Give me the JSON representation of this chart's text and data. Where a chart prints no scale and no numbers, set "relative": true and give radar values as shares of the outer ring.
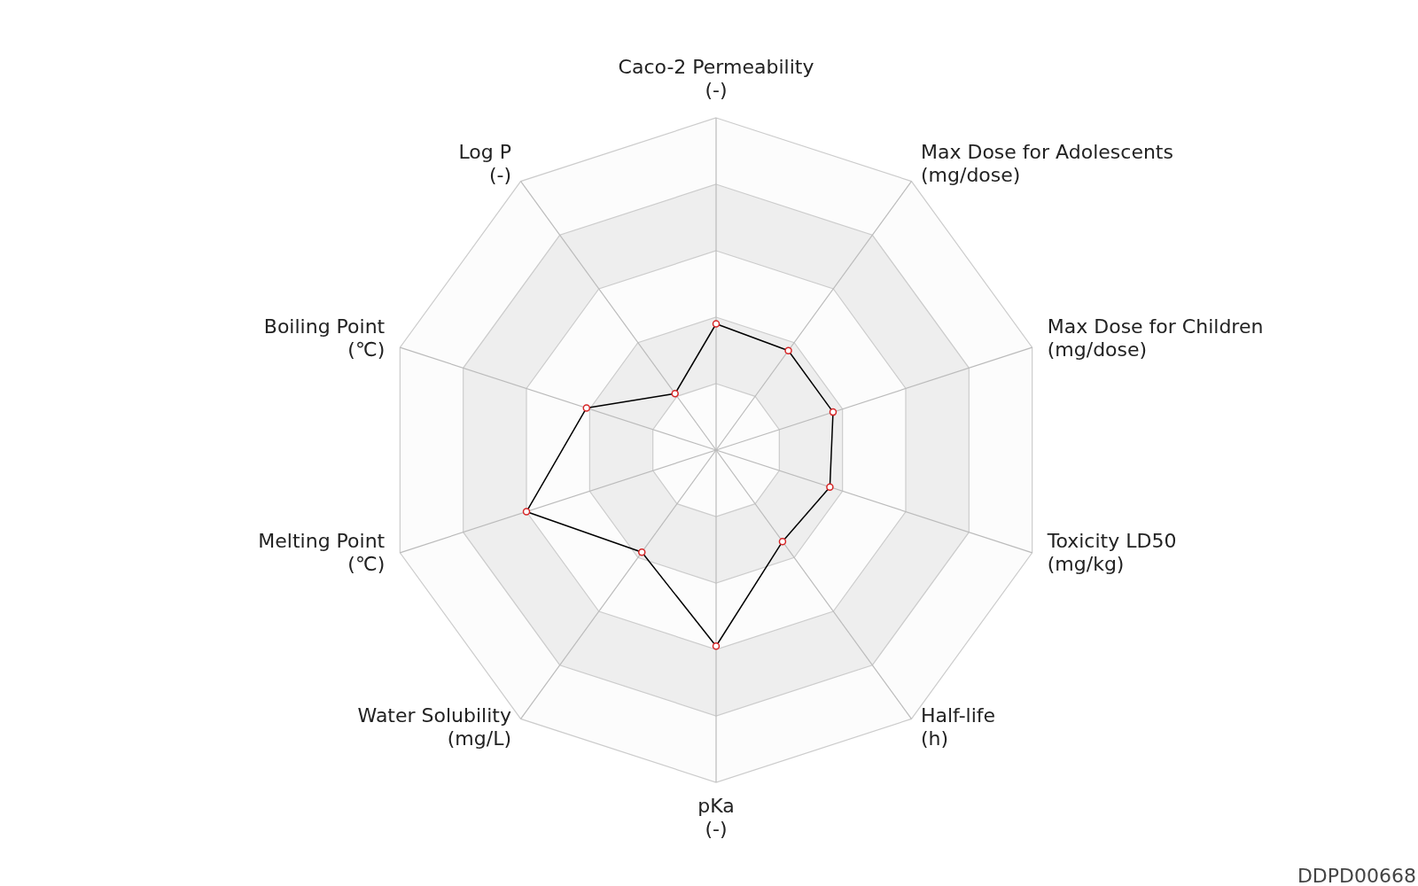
{
  "chart_data": {
    "type": "radar",
    "relative": true,
    "grid": true,
    "marker": "circle",
    "categories": [
      "Caco-2 Permeability\n(-)",
      "Max Dose for Adolescents\n(mg/dose)",
      "Max Dose for Children\n(mg/dose)",
      "Toxicity LD50\n(mg/kg)",
      "Half-life\n(h)",
      "pKa\n(-)",
      "Water Solubility\n(mg/L)",
      "Melting Point\n(℃)",
      "Boiling Point\n(℃)",
      "Log P\n(-)"
    ],
    "series": [
      {
        "color": "#000000",
        "values": [
          0.38,
          0.37,
          0.37,
          0.36,
          0.34,
          0.59,
          0.38,
          0.6,
          0.41,
          0.21
        ]
      }
    ],
    "annotations": [
      "DDPD00668"
    ]
  }
}
